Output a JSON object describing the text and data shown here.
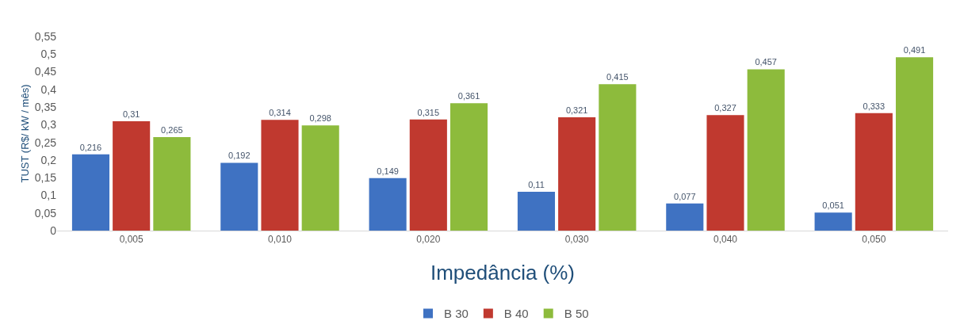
{
  "chart_data": {
    "type": "bar",
    "xlabel": "Impedância (%)",
    "ylabel": "TUST (R$/ kW / mês)",
    "categories": [
      "0,005",
      "0,010",
      "0,020",
      "0,030",
      "0,040",
      "0,050"
    ],
    "series": [
      {
        "name": "B 30",
        "color": "#3f72c2",
        "values": [
          0.216,
          0.192,
          0.149,
          0.11,
          0.077,
          0.051
        ],
        "value_labels": [
          "0,216",
          "0,192",
          "0,149",
          "0,11",
          "0,077",
          "0,051"
        ]
      },
      {
        "name": "B 40",
        "color": "#c0392f",
        "values": [
          0.31,
          0.314,
          0.315,
          0.321,
          0.327,
          0.333
        ],
        "value_labels": [
          "0,31",
          "0,314",
          "0,315",
          "0,321",
          "0,327",
          "0,333"
        ]
      },
      {
        "name": "B 50",
        "color": "#8dbb3c",
        "values": [
          0.265,
          0.298,
          0.361,
          0.415,
          0.457,
          0.491
        ],
        "value_labels": [
          "0,265",
          "0,298",
          "0,361",
          "0,415",
          "0,457",
          "0,491"
        ]
      }
    ],
    "ylim": [
      0,
      0.55
    ],
    "yticks": [
      0,
      {
        "value": 0.05,
        "label": "0,05"
      },
      {
        "value": 0.1,
        "label": "0,1"
      },
      {
        "value": 0.15,
        "label": "0,15"
      },
      {
        "value": 0.2,
        "label": "0,2"
      },
      {
        "value": 0.25,
        "label": "0,25"
      },
      {
        "value": 0.3,
        "label": "0,3"
      },
      {
        "value": 0.35,
        "label": "0,35"
      },
      {
        "value": 0.4,
        "label": "0,4"
      },
      {
        "value": 0.45,
        "label": "0,45"
      },
      {
        "value": 0.5,
        "label": "0,5"
      },
      {
        "value": 0.55,
        "label": "0,55"
      }
    ],
    "grid": false,
    "legend": "bottom"
  }
}
